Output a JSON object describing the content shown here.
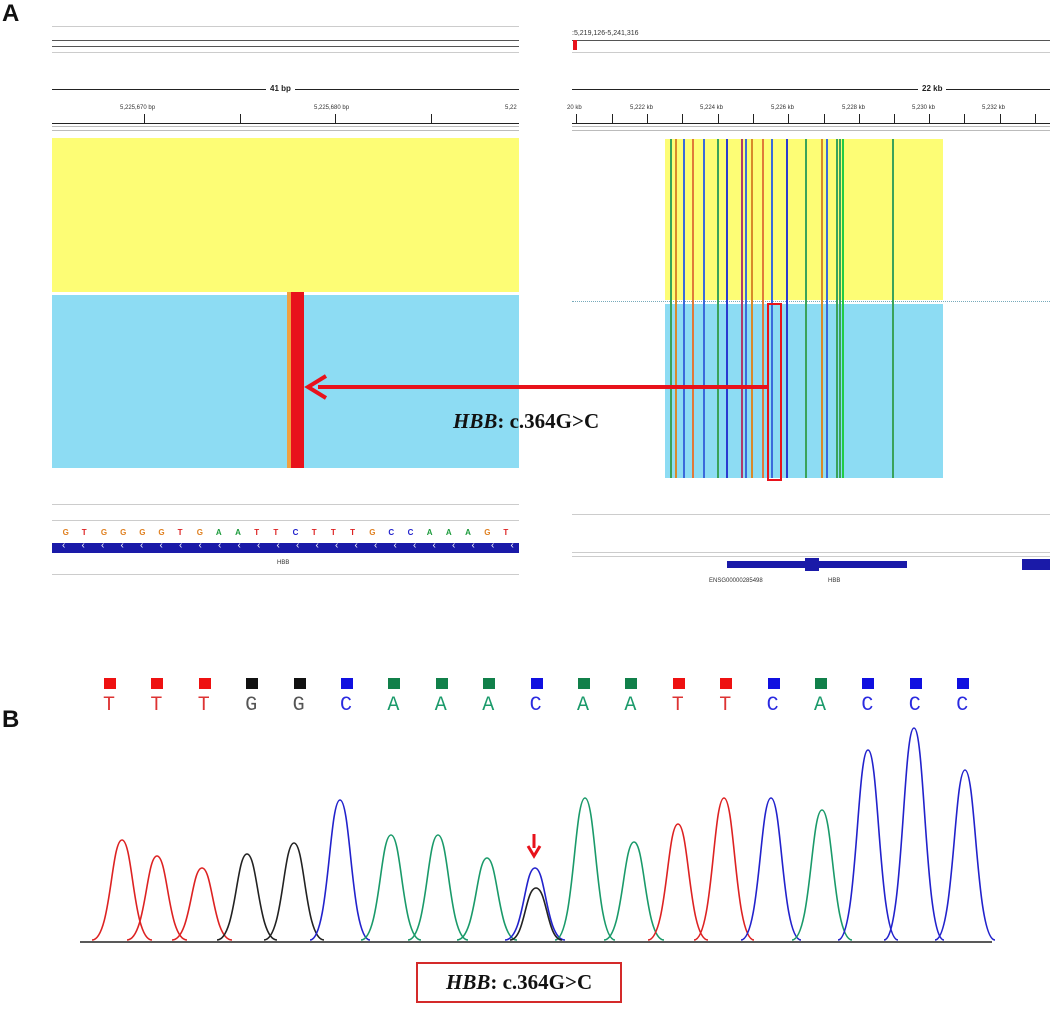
{
  "panel_a": {
    "label": "A",
    "left": {
      "width_label": "41 bp",
      "coords": [
        "5,225,670 bp",
        "5,225,680 bp",
        "5,22"
      ],
      "sequence": [
        "G",
        "T",
        "G",
        "G",
        "G",
        "G",
        "T",
        "G",
        "A",
        "A",
        "T",
        "T",
        "C",
        "T",
        "T",
        "T",
        "G",
        "C",
        "C",
        "A",
        "A",
        "A",
        "G",
        "T"
      ],
      "gene": "HBB"
    },
    "right": {
      "locus": ":5,219,126-5,241,316",
      "width_label": "22 kb",
      "coords": [
        "20 kb",
        "5,222 kb",
        "5,224 kb",
        "5,226 kb",
        "5,228 kb",
        "5,230 kb",
        "5,232 kb"
      ],
      "gene_labels": [
        "ENSG00000285498",
        "HBB"
      ]
    },
    "annotation_gene": "HBB",
    "annotation_variant": ": c.364G>C"
  },
  "panel_b": {
    "label": "B",
    "bases": [
      "T",
      "T",
      "T",
      "G",
      "G",
      "C",
      "A",
      "A",
      "A",
      "C",
      "A",
      "A",
      "T",
      "T",
      "C",
      "A",
      "C",
      "C",
      "C"
    ],
    "annotation_gene": "HBB",
    "annotation_variant": ": c.364G>C"
  },
  "colors": {
    "A": "#1a9a3a",
    "C": "#2222cc",
    "G": "#111111",
    "T": "#dd2222",
    "yellow_track": "#fdfd75",
    "blue_track": "#8ddcf3",
    "highlight_red": "#e8121b"
  }
}
